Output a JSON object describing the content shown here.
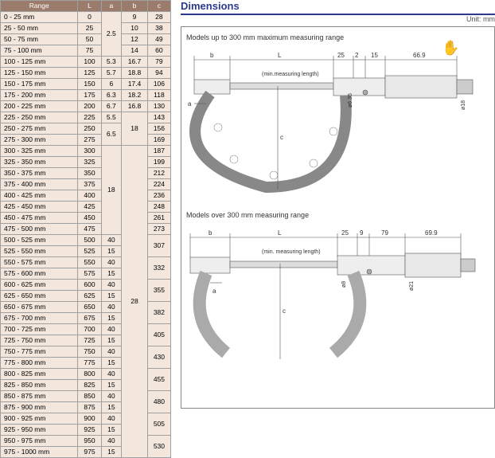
{
  "table": {
    "headers": [
      "Range",
      "L",
      "a",
      "b",
      "c"
    ],
    "groups": [
      {
        "rows": [
          {
            "range": "0 - 25 mm",
            "L": "0",
            "b": "9",
            "c": "28"
          },
          {
            "range": "25 - 50 mm",
            "L": "25",
            "b": "10",
            "c": "38"
          },
          {
            "range": "50 - 75 mm",
            "L": "50",
            "b": "12",
            "c": "49"
          },
          {
            "range": "75 - 100 mm",
            "L": "75",
            "b": "14",
            "c": "60"
          }
        ],
        "a": "2.5"
      },
      {
        "rows": [
          {
            "range": "100 - 125 mm",
            "L": "100",
            "a": "5.3",
            "b": "16.7",
            "c": "79"
          }
        ]
      },
      {
        "rows": [
          {
            "range": "125 - 150 mm",
            "L": "125",
            "a": "5.7",
            "b": "18.8",
            "c": "94"
          }
        ]
      },
      {
        "rows": [
          {
            "range": "150 - 175 mm",
            "L": "150",
            "a": "6",
            "b": "17.4",
            "c": "106"
          }
        ]
      },
      {
        "rows": [
          {
            "range": "175 - 200 mm",
            "L": "175",
            "a": "6.3",
            "b": "18.2",
            "c": "118"
          }
        ]
      },
      {
        "rows": [
          {
            "range": "200 - 225 mm",
            "L": "200",
            "a": "6.7",
            "b": "16.8",
            "c": "130"
          }
        ]
      },
      {
        "rows": [
          {
            "range": "225 - 250 mm",
            "L": "225",
            "a": "5.5",
            "b_span": "18",
            "c": "143"
          }
        ]
      },
      {
        "rows": [
          {
            "range": "250 - 275 mm",
            "L": "250",
            "c": "156"
          },
          {
            "range": "275 - 300 mm",
            "L": "275",
            "c": "169"
          }
        ],
        "a": "6.5"
      },
      {
        "rows": [
          {
            "range": "300 - 325 mm",
            "L": "300",
            "c": "187"
          },
          {
            "range": "325 - 350 mm",
            "L": "325",
            "c": "199"
          },
          {
            "range": "350 - 375 mm",
            "L": "350",
            "c": "212"
          },
          {
            "range": "375 - 400 mm",
            "L": "375",
            "c": "224"
          },
          {
            "range": "400 - 425 mm",
            "L": "400",
            "c": "236"
          },
          {
            "range": "425 - 450 mm",
            "L": "425",
            "c": "248"
          },
          {
            "range": "450 - 475 mm",
            "L": "450",
            "c": "261"
          },
          {
            "range": "475 - 500 mm",
            "L": "475",
            "c": "273"
          }
        ],
        "a": "18"
      },
      {
        "pairs": [
          {
            "r1": "500 - 525 mm",
            "L1": "500",
            "a1": "40",
            "r2": "525 - 550 mm",
            "L2": "525",
            "a2": "15",
            "c": "307"
          },
          {
            "r1": "550 - 575 mm",
            "L1": "550",
            "a1": "40",
            "r2": "575 - 600 mm",
            "L2": "575",
            "a2": "15",
            "c": "332"
          },
          {
            "r1": "600 - 625 mm",
            "L1": "600",
            "a1": "40",
            "r2": "625 - 650 mm",
            "L2": "625",
            "a2": "15",
            "c": "355"
          },
          {
            "r1": "650 - 675 mm",
            "L1": "650",
            "a1": "40",
            "r2": "675 - 700 mm",
            "L2": "675",
            "a2": "15",
            "c": "382"
          },
          {
            "r1": "700 - 725 mm",
            "L1": "700",
            "a1": "40",
            "r2": "725 - 750 mm",
            "L2": "725",
            "a2": "15",
            "c": "405"
          },
          {
            "r1": "750 - 775 mm",
            "L1": "750",
            "a1": "40",
            "r2": "775 - 800 mm",
            "L2": "775",
            "a2": "15",
            "c": "430"
          },
          {
            "r1": "800 - 825 mm",
            "L1": "800",
            "a1": "40",
            "r2": "825 - 850 mm",
            "L2": "825",
            "a2": "15",
            "c": "455"
          },
          {
            "r1": "850 - 875 mm",
            "L1": "850",
            "a1": "40",
            "r2": "875 - 900 mm",
            "L2": "875",
            "a2": "15",
            "c": "480"
          },
          {
            "r1": "900 - 925 mm",
            "L1": "900",
            "a1": "40",
            "r2": "925 - 950 mm",
            "L2": "925",
            "a2": "15",
            "c": "505"
          },
          {
            "r1": "950 - 975 mm",
            "L1": "950",
            "a1": "40",
            "r2": "975 - 1000 mm",
            "L2": "975",
            "a2": "15",
            "c": "530"
          }
        ],
        "b": "28"
      }
    ]
  },
  "dimensions": {
    "title": "Dimensions",
    "unit": "Unit: mm",
    "diagram1": {
      "label": "Models up to 300 mm maximum measuring range",
      "dims": {
        "b": "b",
        "L": "L",
        "min": "(min.measuring length)",
        "d25": "25",
        "d2": "2",
        "d15": "15",
        "d669": "66.9",
        "a": "a",
        "c": "c",
        "phi18": "ø18",
        "phi63": "ø6.35"
      }
    },
    "diagram2": {
      "label": "Models over 300 mm measuring range",
      "dims": {
        "b": "b",
        "L": "L",
        "min": "(min. measuring length)",
        "d25": "25",
        "d9": "9",
        "d79": "79",
        "d699": "69.9",
        "a": "a",
        "c": "c",
        "phi8": "ø8",
        "phi21": "ø21"
      }
    }
  }
}
